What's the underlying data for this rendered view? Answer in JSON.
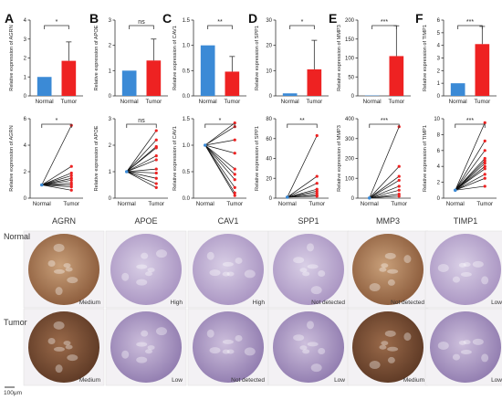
{
  "panel_letters": [
    "A",
    "B",
    "C",
    "D",
    "E",
    "F"
  ],
  "ihc": {
    "genes": [
      "AGRN",
      "APOE",
      "CAV1",
      "SPP1",
      "MMP3",
      "TIMP1"
    ],
    "rows": [
      "Normal",
      "Tumor"
    ],
    "normal_levels": [
      "Medium",
      "High",
      "High",
      "Not detected",
      "Not detected",
      "Low"
    ],
    "tumor_levels": [
      "Medium",
      "Low",
      "Not detected",
      "Low",
      "Medium",
      "Low"
    ],
    "scale_bar": "100μm"
  },
  "colors": {
    "normal": "#3b8ad6",
    "tumor": "#ee2222",
    "line": "#111111"
  },
  "chart_data": [
    {
      "type": "bar",
      "panel": "A",
      "gene": "AGRN",
      "ylabel": "Relative expression of AGRN",
      "categories": [
        "Normal",
        "Tumor"
      ],
      "values": [
        1.0,
        1.85
      ],
      "error": [
        0,
        1.0
      ],
      "ylim": [
        0,
        4
      ],
      "yticks": [
        0,
        1,
        2,
        3,
        4
      ],
      "yticklabels": [
        "0",
        "1",
        "2",
        "3",
        "4"
      ],
      "significance": "*"
    },
    {
      "type": "bar",
      "panel": "B",
      "gene": "APOE",
      "ylabel": "Relative expression of APOE",
      "categories": [
        "Normal",
        "Tumor"
      ],
      "values": [
        1.0,
        1.4
      ],
      "error": [
        0,
        0.85
      ],
      "ylim": [
        0,
        3
      ],
      "yticks": [
        0,
        1,
        2,
        3
      ],
      "yticklabels": [
        "0",
        "1",
        "2",
        "3"
      ],
      "significance": "ns"
    },
    {
      "type": "bar",
      "panel": "C",
      "gene": "CAV1",
      "ylabel": "Relative expression of CAV1",
      "categories": [
        "Normal",
        "Tumor"
      ],
      "values": [
        1.0,
        0.48
      ],
      "error": [
        0,
        0.3
      ],
      "ylim": [
        0,
        1.5
      ],
      "yticks": [
        0,
        0.5,
        1.0,
        1.5
      ],
      "yticklabels": [
        "0.0",
        "0.5",
        "1.0",
        "1.5"
      ],
      "significance": "**"
    },
    {
      "type": "bar",
      "panel": "D",
      "gene": "SPP1",
      "ylabel": "Relative expression of SPP1",
      "categories": [
        "Normal",
        "Tumor"
      ],
      "values": [
        1.0,
        10.5
      ],
      "error": [
        0,
        11.5
      ],
      "ylim": [
        0,
        30
      ],
      "yticks": [
        0,
        10,
        20,
        30
      ],
      "yticklabels": [
        "0",
        "10",
        "20",
        "30"
      ],
      "significance": "*"
    },
    {
      "type": "bar",
      "panel": "E",
      "gene": "MMP3",
      "ylabel": "Relative expression of MMP3",
      "categories": [
        "Normal",
        "Tumor"
      ],
      "values": [
        1.0,
        105
      ],
      "error": [
        0,
        80
      ],
      "ylim": [
        0,
        200
      ],
      "yticks": [
        0,
        50,
        100,
        150,
        200
      ],
      "yticklabels": [
        "0",
        "50",
        "100",
        "150",
        "200"
      ],
      "significance": "***"
    },
    {
      "type": "bar",
      "panel": "F",
      "gene": "TIMP1",
      "ylabel": "Relative expression of TIMP1",
      "categories": [
        "Normal",
        "Tumor"
      ],
      "values": [
        1.0,
        4.1
      ],
      "error": [
        0,
        1.4
      ],
      "ylim": [
        0,
        6
      ],
      "yticks": [
        0,
        1,
        2,
        3,
        4,
        5,
        6
      ],
      "yticklabels": [
        "0",
        "1",
        "2",
        "3",
        "4",
        "5",
        "6"
      ],
      "significance": "***"
    },
    {
      "type": "line",
      "panel": "A",
      "gene": "AGRN",
      "ylabel": "Relative expression of AGRN",
      "categories": [
        "Normal",
        "Tumor"
      ],
      "normal": 1.0,
      "tumor": [
        5.5,
        2.4,
        1.9,
        1.7,
        1.5,
        1.35,
        1.15,
        1.0,
        0.85,
        0.6
      ],
      "ylim": [
        0,
        6
      ],
      "yticks": [
        0,
        2,
        4,
        6
      ],
      "yticklabels": [
        "0",
        "2",
        "4",
        "6"
      ],
      "significance": "*"
    },
    {
      "type": "line",
      "panel": "B",
      "gene": "APOE",
      "ylabel": "Relative expression of APOE",
      "categories": [
        "Normal",
        "Tumor"
      ],
      "normal": 1.0,
      "tumor": [
        2.55,
        2.2,
        1.95,
        1.9,
        1.6,
        1.45,
        1.1,
        0.95,
        0.75,
        0.55,
        0.4
      ],
      "ylim": [
        0,
        3
      ],
      "yticks": [
        0,
        1,
        2,
        3
      ],
      "yticklabels": [
        "0",
        "1",
        "2",
        "3"
      ],
      "significance": "ns"
    },
    {
      "type": "line",
      "panel": "C",
      "gene": "CAV1",
      "ylabel": "Relative expression of CAV1",
      "categories": [
        "Normal",
        "Tumor"
      ],
      "normal": 1.0,
      "tumor": [
        1.42,
        1.35,
        1.1,
        0.85,
        0.55,
        0.45,
        0.35,
        0.2,
        0.1,
        0.05
      ],
      "ylim": [
        0,
        1.5
      ],
      "yticks": [
        0,
        0.5,
        1.0,
        1.5
      ],
      "yticklabels": [
        "0.0",
        "0.5",
        "1.0",
        "1.5"
      ],
      "significance": "*"
    },
    {
      "type": "line",
      "panel": "D",
      "gene": "SPP1",
      "ylabel": "Relative expression of SPP1",
      "categories": [
        "Normal",
        "Tumor"
      ],
      "normal": 1.0,
      "tumor": [
        63,
        22,
        15,
        9,
        7,
        5,
        3,
        2
      ],
      "ylim": [
        0,
        80
      ],
      "yticks": [
        0,
        20,
        40,
        60,
        80
      ],
      "yticklabels": [
        "0",
        "20",
        "40",
        "60",
        "80"
      ],
      "significance": "**"
    },
    {
      "type": "line",
      "panel": "E",
      "gene": "MMP3",
      "ylabel": "Relative expression of MMP3",
      "categories": [
        "Normal",
        "Tumor"
      ],
      "normal": 1.0,
      "tumor": [
        360,
        160,
        110,
        90,
        60,
        40,
        20,
        10
      ],
      "ylim": [
        0,
        400
      ],
      "yticks": [
        0,
        100,
        200,
        300,
        400
      ],
      "yticklabels": [
        "0",
        "100",
        "200",
        "300",
        "400"
      ],
      "significance": "***"
    },
    {
      "type": "line",
      "panel": "F",
      "gene": "TIMP1",
      "ylabel": "Relative expression of TIMP1",
      "categories": [
        "Normal",
        "Tumor"
      ],
      "normal": 1.0,
      "tumor": [
        9.5,
        7.2,
        6.0,
        5.0,
        4.7,
        4.4,
        4.0,
        3.7,
        3.0,
        2.5,
        1.5
      ],
      "ylim": [
        0,
        10
      ],
      "yticks": [
        0,
        2,
        4,
        6,
        8,
        10
      ],
      "yticklabels": [
        "0",
        "2",
        "4",
        "6",
        "8",
        "10"
      ],
      "significance": "***"
    }
  ]
}
